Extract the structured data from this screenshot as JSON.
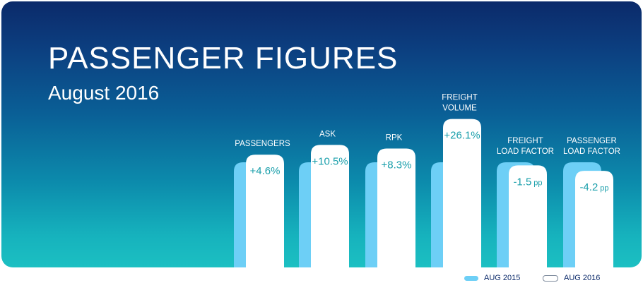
{
  "title": "PASSENGER FIGURES",
  "subtitle": "August 2016",
  "colors": {
    "aug_2015": "#6dcff6",
    "aug_2016": "#ffffff",
    "value_text": "#1a9fab"
  },
  "legend": {
    "aug_2015": "AUG 2015",
    "aug_2016": "AUG 2016"
  },
  "chart_data": {
    "type": "bar",
    "categories": [
      [
        "PASSENGERS"
      ],
      [
        "ASK"
      ],
      [
        "RPK"
      ],
      [
        "FREIGHT",
        "VOLUME"
      ],
      [
        "FREIGHT",
        "LOAD FACTOR"
      ],
      [
        "PASSENGER",
        "LOAD FACTOR"
      ]
    ],
    "value_labels": [
      {
        "value": "+4.6%",
        "unit": ""
      },
      {
        "value": "+10.5%",
        "unit": ""
      },
      {
        "value": "+8.3%",
        "unit": ""
      },
      {
        "value": "+26.1%",
        "unit": ""
      },
      {
        "value": "-1.5",
        "unit": "pp"
      },
      {
        "value": "-4.2",
        "unit": "pp"
      }
    ],
    "change": [
      4.6,
      10.5,
      8.3,
      26.1,
      -1.5,
      -4.2
    ],
    "series": [
      {
        "name": "AUG 2015",
        "role": "baseline"
      },
      {
        "name": "AUG 2016",
        "role": "current"
      }
    ],
    "legend_position": "bottom-right"
  }
}
